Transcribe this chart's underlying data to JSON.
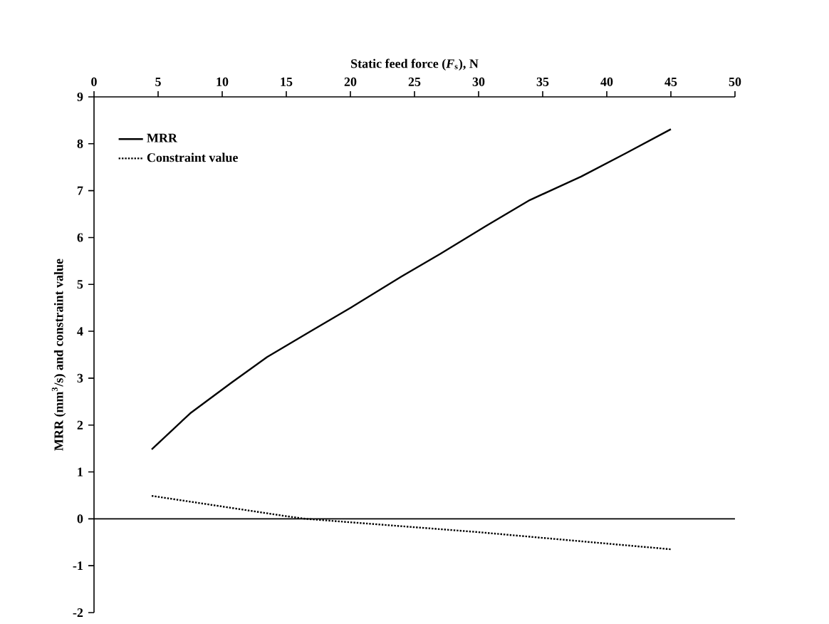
{
  "chart_data": {
    "type": "line",
    "xlabel": "Static feed force (*F*$_{s}$), N",
    "ylabel": "MRR (mm$^{3}$/s) and constraint value",
    "xlim": [
      0,
      50
    ],
    "xticks": [
      0,
      5,
      10,
      15,
      20,
      25,
      30,
      35,
      40,
      45,
      50
    ],
    "ylim": [
      -2,
      9
    ],
    "yticks": [
      -2,
      -1,
      0,
      1,
      2,
      3,
      4,
      5,
      6,
      7,
      8,
      9
    ],
    "grid": false,
    "legend": "top left",
    "marker": "none",
    "ref_lines": [
      {
        "axis": "y",
        "value": 0,
        "color": "#000000"
      }
    ],
    "series": [
      {
        "name": "MRR",
        "color": "#000000",
        "line_style": "solid",
        "x": [
          4.5,
          7.5,
          10.7,
          13.5,
          16.9,
          20,
          24,
          27,
          30.6,
          34,
          38,
          41.5,
          45
        ],
        "values": [
          1.48,
          2.25,
          2.9,
          3.45,
          4.0,
          4.5,
          5.17,
          5.65,
          6.25,
          6.8,
          7.3,
          7.8,
          8.31
        ]
      },
      {
        "name": "Constraint value",
        "color": "#000000",
        "line_style": "dotted",
        "x": [
          4.5,
          14.9,
          16.5,
          29.8,
          45
        ],
        "values": [
          0.49,
          0.06,
          0.0,
          -0.28,
          -0.65
        ]
      }
    ]
  }
}
